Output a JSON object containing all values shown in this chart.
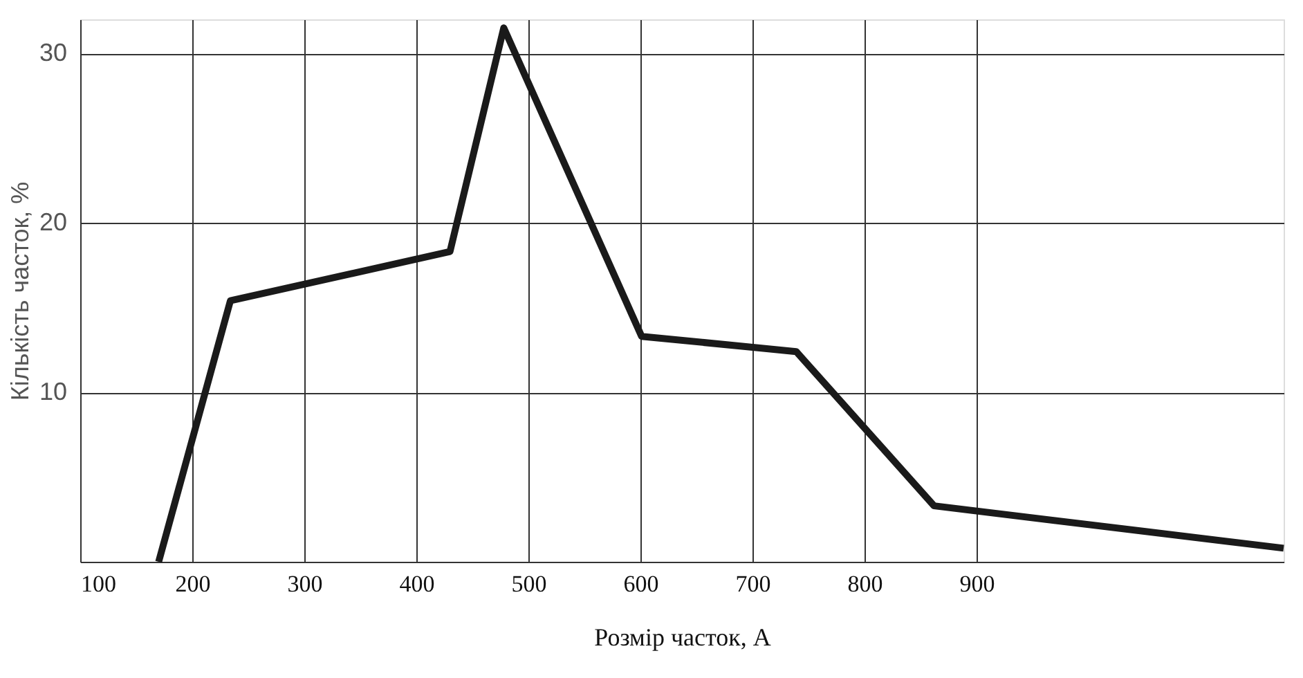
{
  "chart_data": {
    "type": "line",
    "xlabel": "Розмір часток, А",
    "ylabel": "Кількість часток, %",
    "x": [
      170,
      234,
      430,
      478,
      601,
      739,
      862,
      1174
    ],
    "series": [
      {
        "color": "#1a1a1a",
        "values": [
          0,
          15.4,
          18.3,
          31.5,
          13.3,
          12.4,
          3.3,
          0.8
        ]
      }
    ],
    "xlim": [
      100,
      1174
    ],
    "xticks": [
      100,
      200,
      300,
      400,
      500,
      600,
      700,
      800,
      900
    ],
    "ylim": [
      0,
      32
    ],
    "yticks": [
      10,
      20,
      30
    ],
    "grid": true,
    "marker": "none",
    "line_style": "solid"
  }
}
